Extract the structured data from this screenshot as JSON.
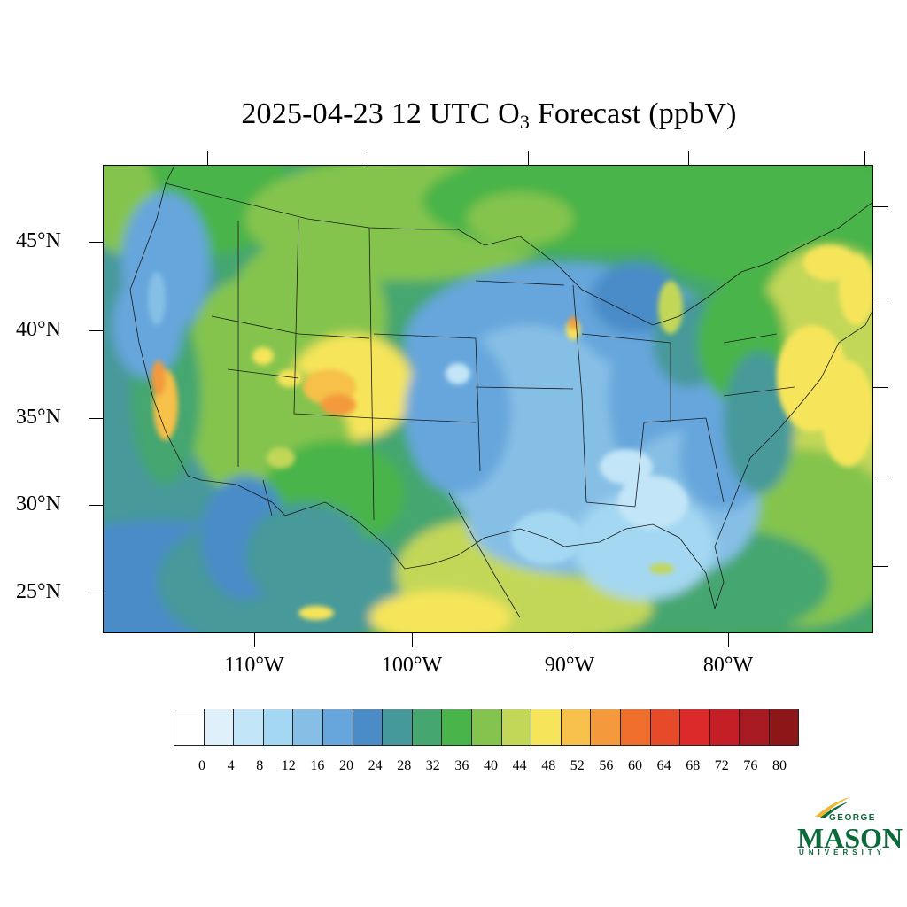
{
  "title_main": "2025-04-23 12 UTC O",
  "title_sub": "3",
  "title_tail": " Forecast (ppbV)",
  "lat_labels": [
    "45°N",
    "40°N",
    "35°N",
    "30°N",
    "25°N"
  ],
  "lon_labels": [
    "110°W",
    "100°W",
    "90°W",
    "80°W"
  ],
  "colorbar": {
    "labels": [
      "0",
      "4",
      "8",
      "12",
      "16",
      "20",
      "24",
      "28",
      "32",
      "36",
      "40",
      "44",
      "48",
      "52",
      "56",
      "60",
      "64",
      "68",
      "72",
      "76",
      "80"
    ],
    "colors": [
      "#ffffff",
      "#dff0fa",
      "#c2e5f7",
      "#a4d8f2",
      "#86bfe6",
      "#66a6dc",
      "#4a8cc8",
      "#46999a",
      "#45a670",
      "#48b44a",
      "#84c44e",
      "#c2d758",
      "#f6e55a",
      "#f6c04a",
      "#f49a3c",
      "#f06e2c",
      "#e64a28",
      "#dc2a2a",
      "#c41e26",
      "#a81a22",
      "#8c1618"
    ]
  },
  "logo": {
    "line1": "GEORGE",
    "line2": "MASON",
    "line3": "UNIVERSITY",
    "color": "#0b6b3a",
    "accent": "#f2b632"
  },
  "chart_data": {
    "type": "heatmap",
    "variable": "O3",
    "units": "ppbV",
    "valid_time": "2025-04-23 12 UTC",
    "lat_range_deg": [
      22.6,
      49.3
    ],
    "lon_range_deg": [
      -119.9,
      -70.8
    ],
    "regions_approx_ppbV": [
      {
        "region": "Pacific Ocean (offshore)",
        "value": 30
      },
      {
        "region": "Pacific Northwest coast",
        "value": 18
      },
      {
        "region": "Central California valley",
        "value": 52
      },
      {
        "region": "Great Basin / Rockies",
        "value": 42
      },
      {
        "region": "Colorado Front Range",
        "value": 50
      },
      {
        "region": "Northern Plains / Canada",
        "value": 38
      },
      {
        "region": "Midwest / Mississippi Valley",
        "value": 16
      },
      {
        "region": "Southeast US / Gulf coast",
        "value": 10
      },
      {
        "region": "Lake Michigan shoreline",
        "value": 50
      },
      {
        "region": "Texas / Gulf of Mexico",
        "value": 44
      },
      {
        "region": "Appalachians / Mid-Atlantic",
        "value": 38
      },
      {
        "region": "Atlantic offshore",
        "value": 46
      },
      {
        "region": "Mexico Plateau",
        "value": 30
      }
    ]
  }
}
